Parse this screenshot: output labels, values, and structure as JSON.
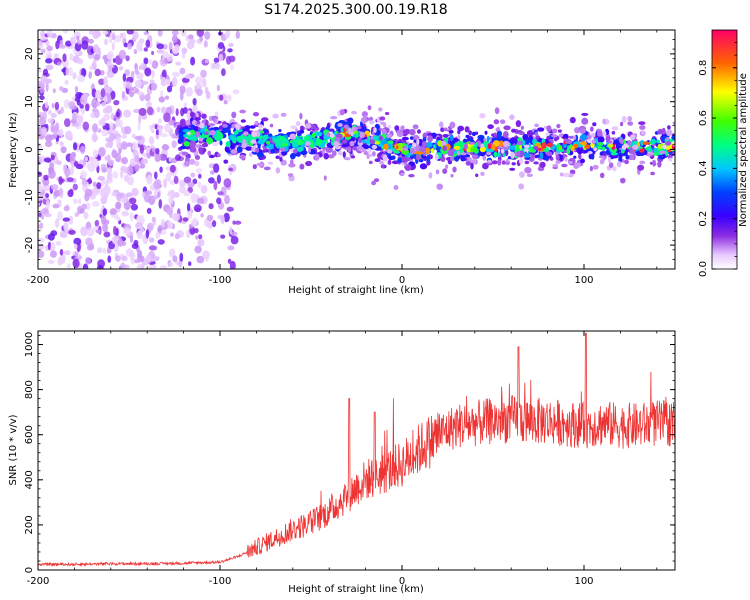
{
  "title": "S174.2025.300.00.19.R18",
  "chart_data": [
    {
      "type": "heatmap",
      "name": "spectrogram",
      "xlabel": "Height of straight line (km)",
      "ylabel": "Frequency (Hz)",
      "xlim": [
        -200,
        150
      ],
      "ylim": [
        -25,
        25
      ],
      "xticks": [
        -200,
        -100,
        0,
        100
      ],
      "yticks": [
        -20,
        -10,
        0,
        10,
        20
      ],
      "colorbar": {
        "label": "Normalized spectral amplitude",
        "range": [
          0,
          0.95
        ],
        "ticks": [
          0.0,
          0.2,
          0.4,
          0.6,
          0.8
        ]
      },
      "description_points": {
        "noise_region_x": [
          -200,
          -100
        ],
        "signal_band": {
          "x": [
            -120,
            -100,
            -80,
            -60,
            -40,
            -30,
            -20,
            -10,
            0,
            10,
            20,
            40,
            60,
            80,
            100,
            120,
            150
          ],
          "center_freq": [
            3,
            3,
            2,
            1.5,
            2,
            3.5,
            2.5,
            1.5,
            0,
            -0.5,
            0.5,
            0.5,
            0.5,
            0.5,
            1,
            0.5,
            0.5
          ]
        }
      }
    },
    {
      "type": "line",
      "name": "snr",
      "xlabel": "Height of straight line (km)",
      "ylabel": "SNR (10 * v/v)",
      "xlim": [
        -200,
        150
      ],
      "ylim": [
        0,
        1060
      ],
      "xticks": [
        -200,
        -100,
        0,
        100
      ],
      "yticks": [
        0,
        200,
        400,
        600,
        800,
        1000
      ],
      "color": "#ee3333",
      "x": [
        -200,
        -180,
        -160,
        -140,
        -120,
        -100,
        -90,
        -80,
        -70,
        -60,
        -50,
        -40,
        -30,
        -20,
        -10,
        0,
        10,
        20,
        30,
        40,
        50,
        60,
        70,
        80,
        90,
        100,
        110,
        120,
        130,
        140,
        150
      ],
      "y": [
        25,
        25,
        28,
        28,
        30,
        35,
        60,
        100,
        140,
        180,
        210,
        260,
        330,
        400,
        430,
        470,
        540,
        600,
        640,
        650,
        660,
        670,
        660,
        660,
        650,
        640,
        650,
        640,
        640,
        650,
        650
      ]
    }
  ]
}
